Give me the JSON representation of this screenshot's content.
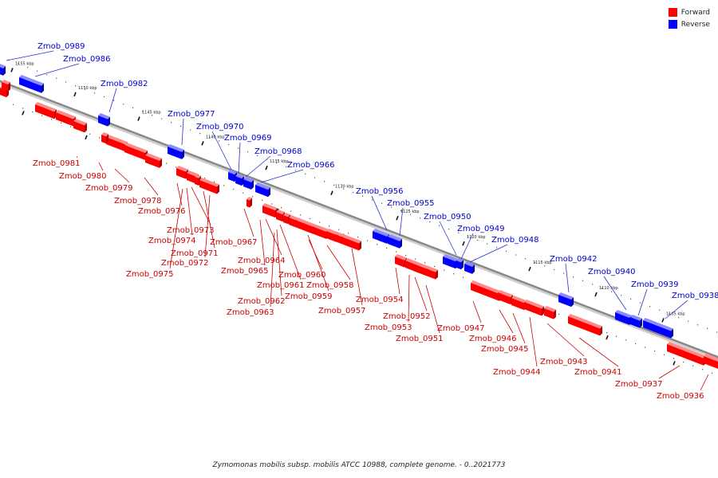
{
  "caption": "Zymomonas mobilis subsp. mobilis ATCC 10988, complete genome. - 0..2021773",
  "legend": [
    {
      "label": "Forward",
      "color": "#ff0000"
    },
    {
      "label": "Reverse",
      "color": "#0000ff"
    }
  ],
  "colors": {
    "forward": "#ff0000",
    "reverse": "#0000ff",
    "backbone": "#888888"
  },
  "ticks": [
    {
      "label": "1155 kbp"
    },
    {
      "label": "1150 kbp"
    },
    {
      "label": "1145 kbp"
    },
    {
      "label": "1140 kbp"
    },
    {
      "label": "1135 kbp"
    },
    {
      "label": "1130 kbp"
    },
    {
      "label": "1125 kbp"
    },
    {
      "label": "1120 kbp"
    },
    {
      "label": "1115 kbp"
    },
    {
      "label": "1110 kbp"
    },
    {
      "label": "1105 kbp"
    }
  ],
  "genes": [
    {
      "name": "Zmob_0989",
      "strand": "reverse"
    },
    {
      "name": "Zmob_0986",
      "strand": "reverse"
    },
    {
      "name": "Zmob_0982",
      "strand": "reverse"
    },
    {
      "name": "Zmob_0977",
      "strand": "reverse"
    },
    {
      "name": "Zmob_0970",
      "strand": "reverse"
    },
    {
      "name": "Zmob_0969",
      "strand": "reverse"
    },
    {
      "name": "Zmob_0968",
      "strand": "reverse"
    },
    {
      "name": "Zmob_0966",
      "strand": "reverse"
    },
    {
      "name": "Zmob_0956",
      "strand": "reverse"
    },
    {
      "name": "Zmob_0955",
      "strand": "reverse"
    },
    {
      "name": "Zmob_0950",
      "strand": "reverse"
    },
    {
      "name": "Zmob_0949",
      "strand": "reverse"
    },
    {
      "name": "Zmob_0948",
      "strand": "reverse"
    },
    {
      "name": "Zmob_0942",
      "strand": "reverse"
    },
    {
      "name": "Zmob_0940",
      "strand": "reverse"
    },
    {
      "name": "Zmob_0939",
      "strand": "reverse"
    },
    {
      "name": "Zmob_0938",
      "strand": "reverse"
    },
    {
      "name": "Zmob_0981",
      "strand": "forward"
    },
    {
      "name": "Zmob_0980",
      "strand": "forward"
    },
    {
      "name": "Zmob_0979",
      "strand": "forward"
    },
    {
      "name": "Zmob_0978",
      "strand": "forward"
    },
    {
      "name": "Zmob_0976",
      "strand": "forward"
    },
    {
      "name": "Zmob_0973",
      "strand": "forward"
    },
    {
      "name": "Zmob_0974",
      "strand": "forward"
    },
    {
      "name": "Zmob_0971",
      "strand": "forward"
    },
    {
      "name": "Zmob_0972",
      "strand": "forward"
    },
    {
      "name": "Zmob_0975",
      "strand": "forward"
    },
    {
      "name": "Zmob_0967",
      "strand": "forward"
    },
    {
      "name": "Zmob_0964",
      "strand": "forward"
    },
    {
      "name": "Zmob_0965",
      "strand": "forward"
    },
    {
      "name": "Zmob_0960",
      "strand": "forward"
    },
    {
      "name": "Zmob_0961",
      "strand": "forward"
    },
    {
      "name": "Zmob_0958",
      "strand": "forward"
    },
    {
      "name": "Zmob_0959",
      "strand": "forward"
    },
    {
      "name": "Zmob_0962",
      "strand": "forward"
    },
    {
      "name": "Zmob_0963",
      "strand": "forward"
    },
    {
      "name": "Zmob_0957",
      "strand": "forward"
    },
    {
      "name": "Zmob_0954",
      "strand": "forward"
    },
    {
      "name": "Zmob_0952",
      "strand": "forward"
    },
    {
      "name": "Zmob_0953",
      "strand": "forward"
    },
    {
      "name": "Zmob_0951",
      "strand": "forward"
    },
    {
      "name": "Zmob_0947",
      "strand": "forward"
    },
    {
      "name": "Zmob_0946",
      "strand": "forward"
    },
    {
      "name": "Zmob_0945",
      "strand": "forward"
    },
    {
      "name": "Zmob_0944",
      "strand": "forward"
    },
    {
      "name": "Zmob_0943",
      "strand": "forward"
    },
    {
      "name": "Zmob_0941",
      "strand": "forward"
    },
    {
      "name": "Zmob_0937",
      "strand": "forward"
    },
    {
      "name": "Zmob_0936",
      "strand": "forward"
    }
  ]
}
